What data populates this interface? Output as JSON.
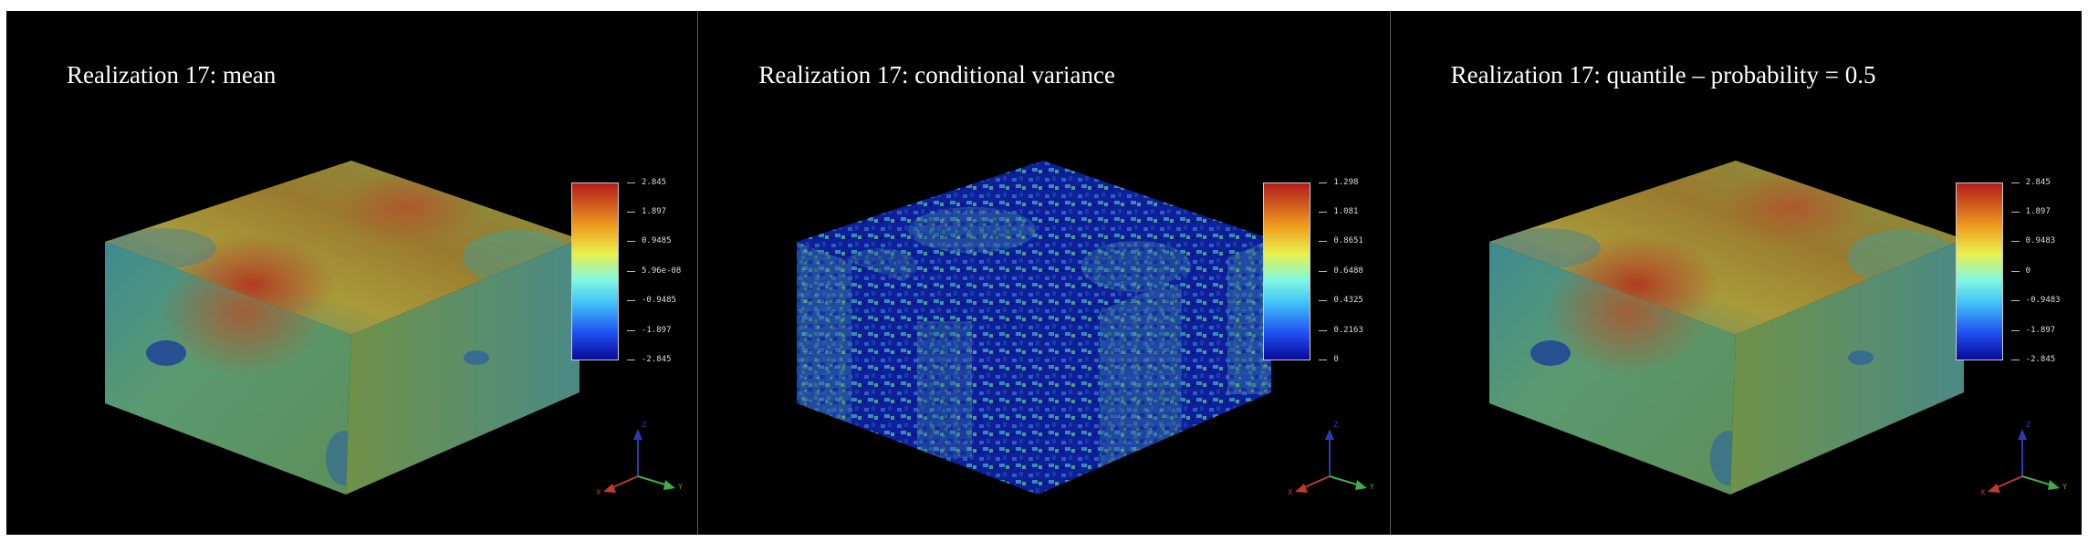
{
  "colors": {
    "background": "#000000",
    "divider": "#5a5a5a",
    "title_text": "#ffffff",
    "axis_x": "#c0392b",
    "axis_y": "#3fae49",
    "axis_z": "#2c3bb5"
  },
  "panels": [
    {
      "title": "Realization 17: mean",
      "field": "mean",
      "colorbar": {
        "colormap": "jet",
        "ticks": [
          "2.845",
          "1.897",
          "0.9485",
          "5.96e-08",
          "-0.9485",
          "-1.897",
          "-2.845"
        ]
      },
      "axes_labels": {
        "x": "X",
        "y": "Y",
        "z": "Z"
      }
    },
    {
      "title": "Realization 17: conditional variance",
      "field": "conditional-variance",
      "colorbar": {
        "colormap": "jet",
        "ticks": [
          "1.298",
          "1.081",
          "0.8651",
          "0.6488",
          "0.4325",
          "0.2163",
          "0"
        ]
      },
      "axes_labels": {
        "x": "X",
        "y": "Y",
        "z": "Z"
      }
    },
    {
      "title": "Realization 17: quantile – probability = 0.5",
      "field": "quantile",
      "colorbar": {
        "colormap": "jet",
        "ticks": [
          "2.845",
          "1.897",
          "0.9483",
          "0",
          "-0.9483",
          "-1.897",
          "-2.845"
        ]
      },
      "axes_labels": {
        "x": "X",
        "y": "Y",
        "z": "Z"
      }
    }
  ]
}
